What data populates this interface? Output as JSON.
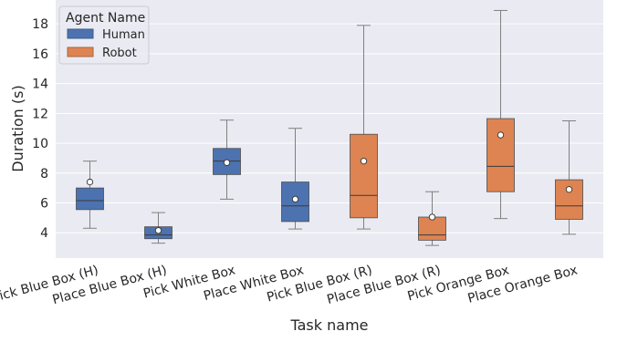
{
  "chart_data": {
    "type": "box",
    "xlabel": "Task name",
    "ylabel": "Duration (s)",
    "ylim": [
      2.3,
      19.6
    ],
    "yticks": [
      4,
      6,
      8,
      10,
      12,
      14,
      16,
      18
    ],
    "grid": true,
    "legend_position": "top-left",
    "legend": {
      "title": "Agent Name",
      "entries": [
        {
          "name": "Human",
          "color": "#4c72b0"
        },
        {
          "name": "Robot",
          "color": "#dd8452"
        }
      ]
    },
    "categories": [
      "Pick Blue Box (H)",
      "Place Blue Box (H)",
      "Pick White Box",
      "Place White Box",
      "Pick Blue Box (R)",
      "Place Blue Box (R)",
      "Pick Orange Box",
      "Place Orange Box"
    ],
    "boxes": [
      {
        "category": "Pick Blue Box (H)",
        "agent": "Human",
        "whislo": 4.3,
        "q1": 5.55,
        "med": 6.15,
        "q3": 7.0,
        "whishi": 8.8,
        "mean": 7.4
      },
      {
        "category": "Place Blue Box (H)",
        "agent": "Human",
        "whislo": 3.3,
        "q1": 3.6,
        "med": 3.85,
        "q3": 4.4,
        "whishi": 5.35,
        "mean": 4.15
      },
      {
        "category": "Pick White Box",
        "agent": "Human",
        "whislo": 6.25,
        "q1": 7.9,
        "med": 8.8,
        "q3": 9.65,
        "whishi": 11.55,
        "mean": 8.7
      },
      {
        "category": "Place White Box",
        "agent": "Human",
        "whislo": 4.25,
        "q1": 4.75,
        "med": 5.8,
        "q3": 7.4,
        "whishi": 11.0,
        "mean": 6.25
      },
      {
        "category": "Pick Blue Box (R)",
        "agent": "Robot",
        "whislo": 4.25,
        "q1": 5.0,
        "med": 6.5,
        "q3": 10.6,
        "whishi": 17.9,
        "mean": 8.8
      },
      {
        "category": "Place Blue Box (R)",
        "agent": "Robot",
        "whislo": 3.15,
        "q1": 3.5,
        "med": 3.85,
        "q3": 5.05,
        "whishi": 6.75,
        "mean": 5.05
      },
      {
        "category": "Pick Orange Box",
        "agent": "Robot",
        "whislo": 4.95,
        "q1": 6.75,
        "med": 8.45,
        "q3": 11.65,
        "whishi": 18.9,
        "mean": 10.55
      },
      {
        "category": "Place Orange Box",
        "agent": "Robot",
        "whislo": 3.9,
        "q1": 4.9,
        "med": 5.8,
        "q3": 7.55,
        "whishi": 11.5,
        "mean": 6.9
      }
    ]
  }
}
